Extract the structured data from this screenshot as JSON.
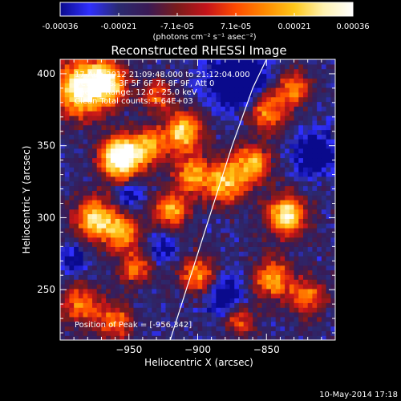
{
  "chart_data": [
    {
      "type": "colorbar",
      "ticks": [
        "-0.00036",
        "-0.00021",
        "-7.1e-05",
        "7.1e-05",
        "0.00021",
        "0.00036"
      ],
      "units_label": "(photons cm⁻² s⁻¹ asec⁻²)",
      "range": [
        -0.00036,
        0.00036
      ],
      "colormap": [
        "#0a0a8c",
        "#2f2fff",
        "#2a2a70",
        "#3a1a55",
        "#7a1b1b",
        "#c4141a",
        "#ff4b00",
        "#ff8a00",
        "#ffc81a",
        "#fff2b0",
        "#ffffff"
      ]
    },
    {
      "type": "heatmap",
      "title": "Reconstructed RHESSI Image",
      "xlabel": "Heliocentric X (arcsec)",
      "ylabel": "Heliocentric Y (arcsec)",
      "xlim": [
        -1000,
        -800
      ],
      "ylim": [
        215,
        410
      ],
      "xticks": [
        -950,
        -900,
        -850
      ],
      "yticks": [
        250,
        300,
        350,
        400
      ],
      "xtick_labels": [
        "−950",
        "−900",
        "−850"
      ],
      "ytick_labels": [
        "250",
        "300",
        "350",
        "400"
      ],
      "grid": [
        60,
        60
      ],
      "annotations": [
        "17-Aug-2012 21:09:48.000 to 21:12:04.000",
        "Detectors: 3F 5F 6F 7F 8F 9F, Att 0",
        "Energy Range: 12.0 - 25.0 keV",
        "Clean    Total counts: 1.64E+03"
      ],
      "peak_label": "Position of Peak = [-956,342]",
      "peak": [
        -956,
        342
      ],
      "limb_curve": [
        [
          -920,
          215
        ],
        [
          -895,
          290
        ],
        [
          -875,
          350
        ],
        [
          -860,
          390
        ],
        [
          -845,
          420
        ]
      ],
      "blobs": [
        {
          "x": -956,
          "y": 342,
          "s": 10,
          "a": 1.0
        },
        {
          "x": -985,
          "y": 390,
          "s": 14,
          "a": 0.75
        },
        {
          "x": -965,
          "y": 395,
          "s": 10,
          "a": 0.6
        },
        {
          "x": -975,
          "y": 300,
          "s": 10,
          "a": 0.65
        },
        {
          "x": -955,
          "y": 290,
          "s": 9,
          "a": 0.55
        },
        {
          "x": -935,
          "y": 350,
          "s": 9,
          "a": 0.5
        },
        {
          "x": -910,
          "y": 360,
          "s": 10,
          "a": 0.65
        },
        {
          "x": -905,
          "y": 330,
          "s": 9,
          "a": 0.5
        },
        {
          "x": -920,
          "y": 305,
          "s": 9,
          "a": 0.55
        },
        {
          "x": -945,
          "y": 265,
          "s": 8,
          "a": 0.45
        },
        {
          "x": -900,
          "y": 260,
          "s": 9,
          "a": 0.5
        },
        {
          "x": -880,
          "y": 325,
          "s": 11,
          "a": 0.6
        },
        {
          "x": -860,
          "y": 338,
          "s": 9,
          "a": 0.55
        },
        {
          "x": -850,
          "y": 375,
          "s": 10,
          "a": 0.55
        },
        {
          "x": -830,
          "y": 390,
          "s": 8,
          "a": 0.5
        },
        {
          "x": -835,
          "y": 302,
          "s": 10,
          "a": 0.7
        },
        {
          "x": -845,
          "y": 258,
          "s": 10,
          "a": 0.55
        },
        {
          "x": -820,
          "y": 245,
          "s": 9,
          "a": 0.45
        },
        {
          "x": -870,
          "y": 230,
          "s": 8,
          "a": 0.4
        },
        {
          "x": -985,
          "y": 240,
          "s": 10,
          "a": 0.45
        },
        {
          "x": -930,
          "y": 385,
          "s": 8,
          "a": 0.4
        },
        {
          "x": -960,
          "y": 228,
          "s": 9,
          "a": 0.45
        }
      ],
      "dips": [
        {
          "x": -870,
          "y": 395,
          "s": 14,
          "a": 0.55
        },
        {
          "x": -880,
          "y": 245,
          "s": 10,
          "a": 0.35
        },
        {
          "x": -815,
          "y": 345,
          "s": 10,
          "a": 0.45
        },
        {
          "x": -950,
          "y": 315,
          "s": 6,
          "a": 0.3
        },
        {
          "x": -925,
          "y": 280,
          "s": 7,
          "a": 0.3
        },
        {
          "x": -990,
          "y": 270,
          "s": 7,
          "a": 0.3
        }
      ]
    }
  ],
  "footer": {
    "timestamp": "10-May-2014 17:18"
  }
}
